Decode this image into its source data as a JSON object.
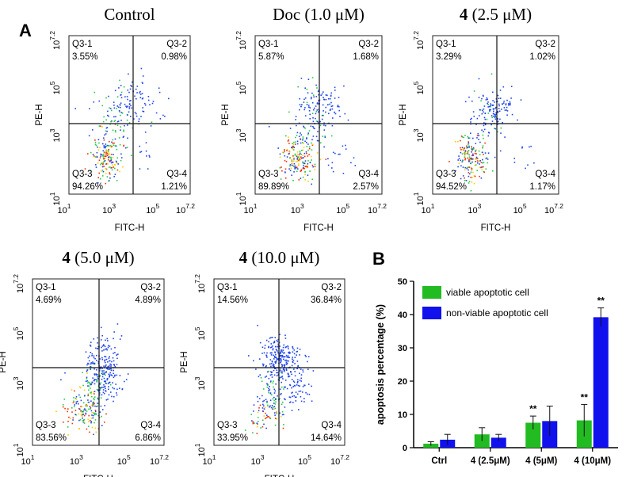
{
  "panel_labels": {
    "a": "A",
    "b": "B"
  },
  "axis_text": {
    "x_label": "FITC-H",
    "y_label": "PE-H"
  },
  "tick_labels": {
    "base": "10",
    "exp_1": "1",
    "exp_3": "3",
    "exp_5": "5"
  },
  "chart_data": [
    {
      "type": "scatter",
      "title_bold": "",
      "title_rest": "Control",
      "xlabel": "FITC-H",
      "ylabel": "PE-H",
      "top_exp": "7.2",
      "quadrants": [
        {
          "name": "Q3-1",
          "value": "3.55%"
        },
        {
          "name": "Q3-2",
          "value": "0.98%"
        },
        {
          "name": "Q3-3",
          "value": "94.26%"
        },
        {
          "name": "Q3-4",
          "value": "1.21%"
        }
      ]
    },
    {
      "type": "scatter",
      "title_bold": "",
      "title_rest": "Doc (1.0 μM)",
      "xlabel": "FITC-H",
      "ylabel": "PE-H",
      "top_exp": "7.2",
      "quadrants": [
        {
          "name": "Q3-1",
          "value": "5.87%"
        },
        {
          "name": "Q3-2",
          "value": "1.68%"
        },
        {
          "name": "Q3-3",
          "value": "89.89%"
        },
        {
          "name": "Q3-4",
          "value": "2.57%"
        }
      ]
    },
    {
      "type": "scatter",
      "title_bold": "4",
      "title_rest": " (2.5 μM)",
      "xlabel": "FITC-H",
      "ylabel": "PE-H",
      "top_exp": "7.2",
      "quadrants": [
        {
          "name": "Q3-1",
          "value": "3.29%"
        },
        {
          "name": "Q3-2",
          "value": "1.02%"
        },
        {
          "name": "Q3-3",
          "value": "94.52%"
        },
        {
          "name": "Q3-4",
          "value": "1.17%"
        }
      ]
    },
    {
      "type": "scatter",
      "title_bold": "4",
      "title_rest": " (5.0 μM)",
      "xlabel": "FITC-H",
      "ylabel": "PE-H",
      "top_exp": "7.2",
      "quadrants": [
        {
          "name": "Q3-1",
          "value": "4.69%"
        },
        {
          "name": "Q3-2",
          "value": "4.89%"
        },
        {
          "name": "Q3-3",
          "value": "83.56%"
        },
        {
          "name": "Q3-4",
          "value": "6.86%"
        }
      ]
    },
    {
      "type": "scatter",
      "title_bold": "4",
      "title_rest": " (10.0 μM)",
      "xlabel": "FITC-H",
      "ylabel": "PE-H",
      "top_exp": "7.2",
      "quadrants": [
        {
          "name": "Q3-1",
          "value": "14.56%"
        },
        {
          "name": "Q3-2",
          "value": "36.84%"
        },
        {
          "name": "Q3-3",
          "value": "33.95%"
        },
        {
          "name": "Q3-4",
          "value": "14.64%"
        }
      ]
    },
    {
      "type": "bar",
      "title": "",
      "xlabel": "",
      "ylabel": "apoptosis percentage (%)",
      "categories": [
        "Ctrl",
        "4 (2.5μM)",
        "4 (5μM)",
        "4 (10μM)"
      ],
      "ylim": [
        0,
        50
      ],
      "yticks": [
        0,
        10,
        20,
        30,
        40,
        50
      ],
      "series": [
        {
          "name": "viable apoptotic cell",
          "color": "#22bb22",
          "values": [
            1.2,
            4.0,
            7.5,
            8.2
          ],
          "errors": [
            0.6,
            2.0,
            2.0,
            4.8
          ],
          "significance": [
            "",
            "",
            "**",
            "**"
          ]
        },
        {
          "name": "non-viable apoptotic cell",
          "color": "#1111ee",
          "values": [
            2.4,
            3.0,
            8.0,
            39.2
          ],
          "errors": [
            1.6,
            1.0,
            4.5,
            2.8
          ],
          "significance": [
            "",
            "",
            "",
            "**"
          ]
        }
      ]
    }
  ]
}
